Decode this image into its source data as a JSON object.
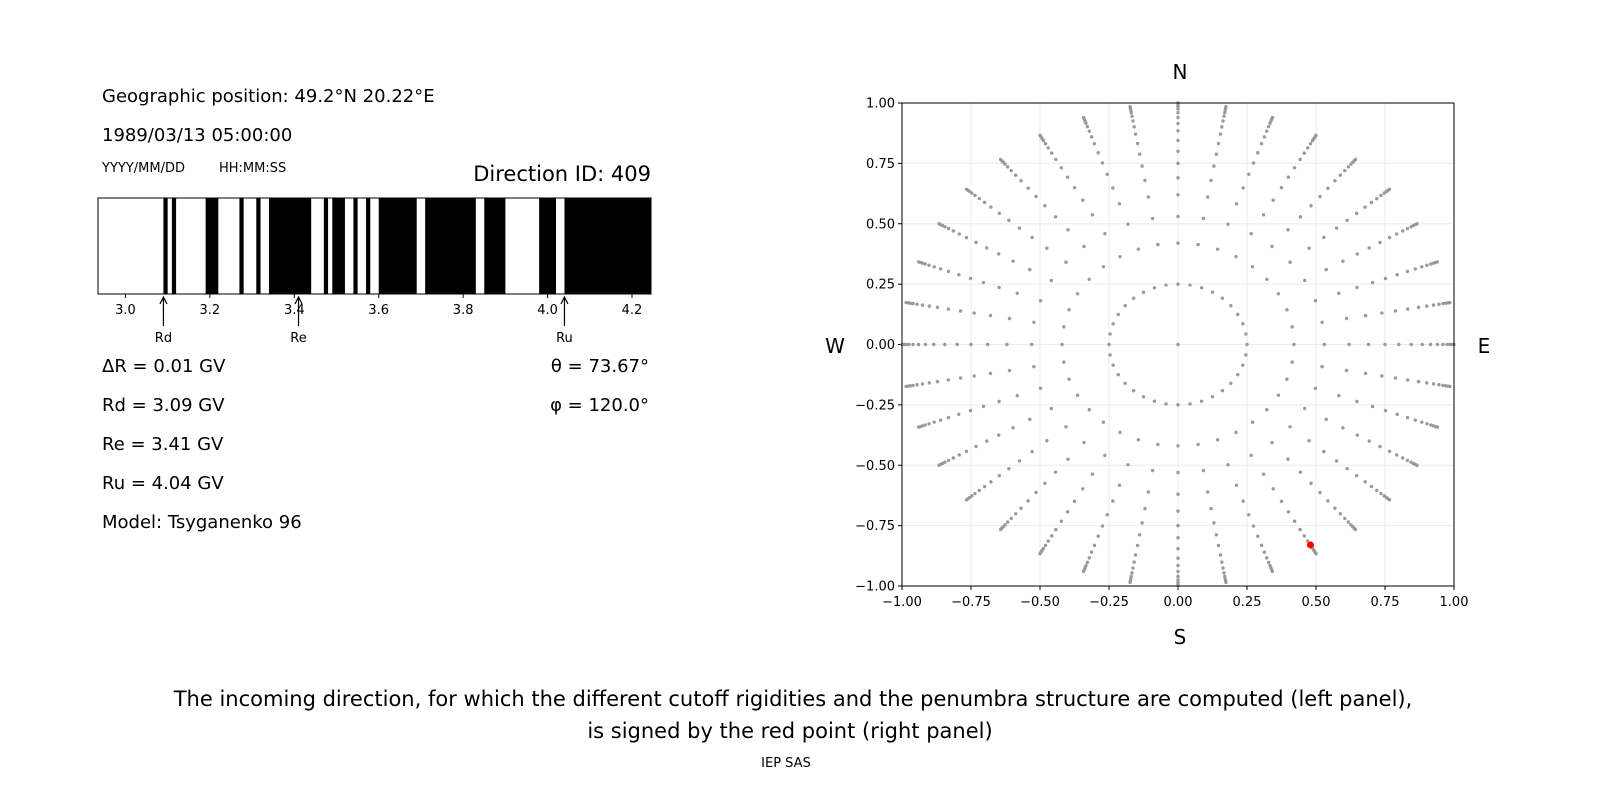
{
  "left_panel": {
    "position": "Geographic position: 49.2°N 20.22°E",
    "datetime": "1989/03/13 05:00:00",
    "date_format": "YYYY/MM/DD",
    "time_format": "HH:MM:SS",
    "direction_id": "Direction ID: 409",
    "delta_r": "ΔR = 0.01 GV",
    "rd": "Rd = 3.09 GV",
    "re": "Re = 3.41 GV",
    "ru": "Ru = 4.04 GV",
    "model": "Model: Tsyganenko 96",
    "theta": "θ = 73.67°",
    "phi": "φ = 120.0°"
  },
  "caption": {
    "line1": "The incoming direction, for which the different cutoff rigidities and the penumbra structure are computed (left panel),",
    "line2": "is signed by the red point (right panel)",
    "credit": "IEP SAS"
  },
  "chart_data": [
    {
      "type": "bar",
      "description_kind": "penumbra",
      "xlim": [
        2.935,
        4.245
      ],
      "xticks": [
        "3.0",
        "3.2",
        "3.4",
        "3.6",
        "3.8",
        "4.0",
        "4.2"
      ],
      "xtick_values": [
        3.0,
        3.2,
        3.4,
        3.6,
        3.8,
        4.0,
        4.2
      ],
      "black_intervals": [
        [
          3.09,
          3.1
        ],
        [
          3.11,
          3.12
        ],
        [
          3.19,
          3.22
        ],
        [
          3.27,
          3.28
        ],
        [
          3.31,
          3.32
        ],
        [
          3.34,
          3.44
        ],
        [
          3.47,
          3.48
        ],
        [
          3.49,
          3.52
        ],
        [
          3.54,
          3.55
        ],
        [
          3.57,
          3.58
        ],
        [
          3.6,
          3.69
        ],
        [
          3.71,
          3.83
        ],
        [
          3.85,
          3.9
        ],
        [
          3.98,
          4.02
        ],
        [
          4.04,
          4.245
        ]
      ],
      "colors": {
        "allowed": "#ffffff",
        "forbidden": "#000000"
      },
      "markers": [
        {
          "label": "Rd",
          "value": 3.09
        },
        {
          "label": "Re",
          "value": 3.41
        },
        {
          "label": "Ru",
          "value": 4.04
        }
      ]
    },
    {
      "type": "scatter",
      "xlim": [
        -1,
        1
      ],
      "ylim": [
        -1,
        1
      ],
      "ticks": [
        "−1.00",
        "−0.75",
        "−0.50",
        "−0.25",
        "0.00",
        "0.25",
        "0.50",
        "0.75",
        "1.00"
      ],
      "tick_values": [
        -1,
        -0.75,
        -0.5,
        -0.25,
        0,
        0.25,
        0.5,
        0.75,
        1
      ],
      "grid": true,
      "compass": {
        "north": "N",
        "south": "S",
        "west": "W",
        "east": "E"
      },
      "directions": {
        "azimuth_step_deg": 10,
        "inner_ring_radius": 0.25,
        "spoke_radii": [
          0.42,
          0.53,
          0.62,
          0.69,
          0.75,
          0.8,
          0.845,
          0.885,
          0.915,
          0.94,
          0.96,
          0.975,
          0.985,
          0.993,
          1.0
        ],
        "center_point": true,
        "color": "#999999"
      },
      "selected": {
        "x": 0.48,
        "y": -0.83,
        "color": "#ff0000"
      }
    }
  ]
}
